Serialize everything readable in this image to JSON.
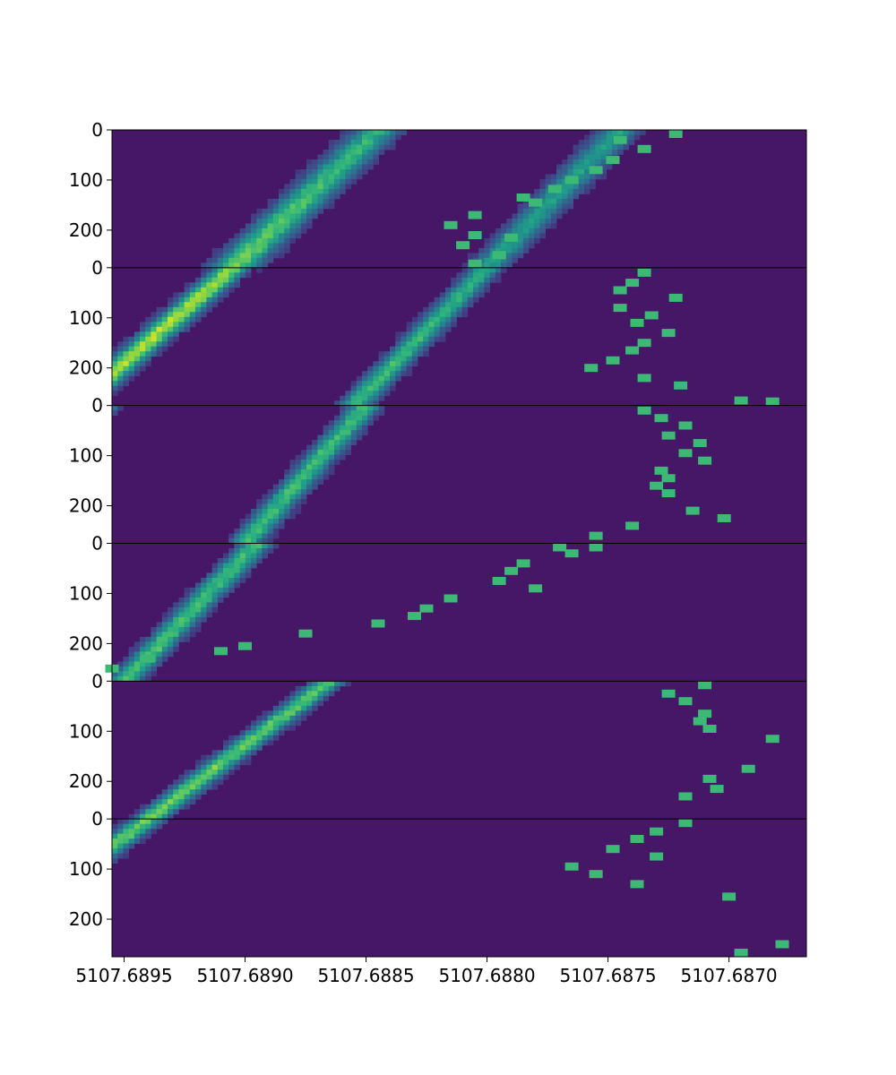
{
  "chart_data": {
    "type": "heatmap",
    "colormap": "viridis",
    "title": "",
    "xlabel": "",
    "ylabel": "",
    "x_axis": {
      "inverted": true,
      "xlim": [
        5107.68955,
        5107.68668
      ],
      "ticks": [
        {
          "value": 5107.6895,
          "label": "5107.6895"
        },
        {
          "value": 5107.689,
          "label": "5107.6890"
        },
        {
          "value": 5107.6885,
          "label": "5107.6885"
        },
        {
          "value": 5107.688,
          "label": "5107.6880"
        },
        {
          "value": 5107.6875,
          "label": "5107.6875"
        },
        {
          "value": 5107.687,
          "label": "5107.6870"
        }
      ]
    },
    "panels": [
      {
        "ylim": [
          275,
          0
        ],
        "y_ticks": [
          {
            "value": 0,
            "label": "0"
          },
          {
            "value": 100,
            "label": "100"
          },
          {
            "value": 200,
            "label": "200"
          }
        ],
        "ridges": [
          {
            "x_start": 5107.68845,
            "x_end": 5107.68905,
            "peak": 0.55,
            "peak_end": 0.72,
            "width": 9.5e-05
          },
          {
            "x_start": 5107.68745,
            "x_end": 5107.688,
            "peak": 0.48,
            "peak_end": 0.5,
            "width": 8e-05
          }
        ],
        "markers": [
          [
            5107.68722,
            5
          ],
          [
            5107.68745,
            20
          ],
          [
            5107.68735,
            38
          ],
          [
            5107.68748,
            60
          ],
          [
            5107.68755,
            80
          ],
          [
            5107.68765,
            100
          ],
          [
            5107.68772,
            118
          ],
          [
            5107.68785,
            135
          ],
          [
            5107.6878,
            145
          ],
          [
            5107.68805,
            170
          ],
          [
            5107.68815,
            190
          ],
          [
            5107.68805,
            210
          ],
          [
            5107.6879,
            215
          ],
          [
            5107.6881,
            230
          ],
          [
            5107.68795,
            250
          ],
          [
            5107.68805,
            270
          ]
        ]
      },
      {
        "ylim": [
          275,
          0
        ],
        "y_ticks": [
          {
            "value": 0,
            "label": "0"
          },
          {
            "value": 100,
            "label": "100"
          },
          {
            "value": 200,
            "label": "200"
          }
        ],
        "ridges": [
          {
            "x_start": 5107.68905,
            "x_end": 5107.6897,
            "peak": 0.8,
            "peak_end": 0.82,
            "width": 7e-05
          },
          {
            "x_start": 5107.688,
            "x_end": 5107.68855,
            "peak": 0.55,
            "peak_end": 0.62,
            "width": 6.5e-05
          }
        ],
        "markers": [
          [
            5107.68735,
            10
          ],
          [
            5107.6874,
            30
          ],
          [
            5107.68745,
            45
          ],
          [
            5107.68722,
            60
          ],
          [
            5107.68745,
            80
          ],
          [
            5107.68732,
            95
          ],
          [
            5107.68738,
            110
          ],
          [
            5107.68725,
            130
          ],
          [
            5107.68735,
            150
          ],
          [
            5107.6874,
            165
          ],
          [
            5107.68748,
            185
          ],
          [
            5107.68757,
            200
          ],
          [
            5107.68735,
            220
          ],
          [
            5107.6872,
            235
          ],
          [
            5107.68695,
            265
          ],
          [
            5107.68682,
            285
          ]
        ]
      },
      {
        "ylim": [
          275,
          0
        ],
        "y_ticks": [
          {
            "value": 0,
            "label": "0"
          },
          {
            "value": 100,
            "label": "100"
          },
          {
            "value": 200,
            "label": "200"
          }
        ],
        "ridges": [
          {
            "x_start": 5107.6896,
            "x_end": 5107.69025,
            "peak": 0.85,
            "peak_end": 0.88,
            "width": 7e-05
          },
          {
            "x_start": 5107.6885,
            "x_end": 5107.689,
            "peak": 0.62,
            "peak_end": 0.62,
            "width": 6.5e-05
          }
        ],
        "markers": [
          [
            5107.68735,
            10
          ],
          [
            5107.68728,
            25
          ],
          [
            5107.68718,
            40
          ],
          [
            5107.68725,
            60
          ],
          [
            5107.68712,
            75
          ],
          [
            5107.68718,
            95
          ],
          [
            5107.6871,
            110
          ],
          [
            5107.68728,
            130
          ],
          [
            5107.68725,
            145
          ],
          [
            5107.6873,
            160
          ],
          [
            5107.68725,
            175
          ],
          [
            5107.68715,
            210
          ],
          [
            5107.68702,
            225
          ],
          [
            5107.6874,
            240
          ],
          [
            5107.68755,
            260
          ]
        ]
      },
      {
        "ylim": [
          275,
          0
        ],
        "y_ticks": [
          {
            "value": 0,
            "label": "0"
          },
          {
            "value": 100,
            "label": "100"
          },
          {
            "value": 200,
            "label": "200"
          }
        ],
        "ridges": [
          {
            "x_start": 5107.6901,
            "x_end": 5107.6908,
            "peak": 0.85,
            "peak_end": 0.8,
            "width": 7.5e-05
          },
          {
            "x_start": 5107.68895,
            "x_end": 5107.6895,
            "peak": 0.62,
            "peak_end": 0.65,
            "width": 6.5e-05
          }
        ],
        "markers": [
          [
            5107.68755,
            -10
          ],
          [
            5107.6877,
            5
          ],
          [
            5107.68765,
            20
          ],
          [
            5107.68785,
            40
          ],
          [
            5107.6879,
            55
          ],
          [
            5107.68795,
            75
          ],
          [
            5107.6878,
            90
          ],
          [
            5107.68815,
            110
          ],
          [
            5107.68825,
            130
          ],
          [
            5107.6883,
            145
          ],
          [
            5107.68845,
            160
          ],
          [
            5107.68875,
            180
          ],
          [
            5107.689,
            205
          ],
          [
            5107.6891,
            215
          ],
          [
            5107.6894,
            230
          ],
          [
            5107.68955,
            250
          ],
          [
            5107.6897,
            265
          ]
        ]
      },
      {
        "ylim": [
          275,
          0
        ],
        "y_ticks": [
          {
            "value": 0,
            "label": "0"
          },
          {
            "value": 100,
            "label": "100"
          },
          {
            "value": 200,
            "label": "200"
          }
        ],
        "ridges": [
          {
            "x_start": 5107.68865,
            "x_end": 5107.6894,
            "peak": 0.66,
            "peak_end": 0.72,
            "width": 6.5e-05
          }
        ],
        "markers": [
          [
            5107.6871,
            5
          ],
          [
            5107.68725,
            25
          ],
          [
            5107.68718,
            40
          ],
          [
            5107.6871,
            65
          ],
          [
            5107.68712,
            80
          ],
          [
            5107.68708,
            95
          ],
          [
            5107.68682,
            115
          ],
          [
            5107.6865,
            135
          ],
          [
            5107.68662,
            150
          ],
          [
            5107.68692,
            175
          ],
          [
            5107.68708,
            195
          ],
          [
            5107.68705,
            215
          ],
          [
            5107.68718,
            230
          ]
        ]
      },
      {
        "ylim": [
          275,
          0
        ],
        "y_ticks": [
          {
            "value": 0,
            "label": "0"
          },
          {
            "value": 100,
            "label": "100"
          },
          {
            "value": 200,
            "label": "200"
          }
        ],
        "ridges": [
          {
            "x_start": 5107.6894,
            "x_end": 5107.69015,
            "peak": 0.7,
            "peak_end": 0.78,
            "width": 6.5e-05
          }
        ],
        "markers": [
          [
            5107.68718,
            5
          ],
          [
            5107.6873,
            25
          ],
          [
            5107.68738,
            40
          ],
          [
            5107.68748,
            60
          ],
          [
            5107.6873,
            75
          ],
          [
            5107.68765,
            95
          ],
          [
            5107.68755,
            110
          ],
          [
            5107.68738,
            130
          ],
          [
            5107.687,
            155
          ],
          [
            5107.68672,
            180
          ],
          [
            5107.68655,
            195
          ],
          [
            5107.68665,
            230
          ],
          [
            5107.68678,
            250
          ],
          [
            5107.68695,
            270
          ]
        ]
      }
    ]
  }
}
